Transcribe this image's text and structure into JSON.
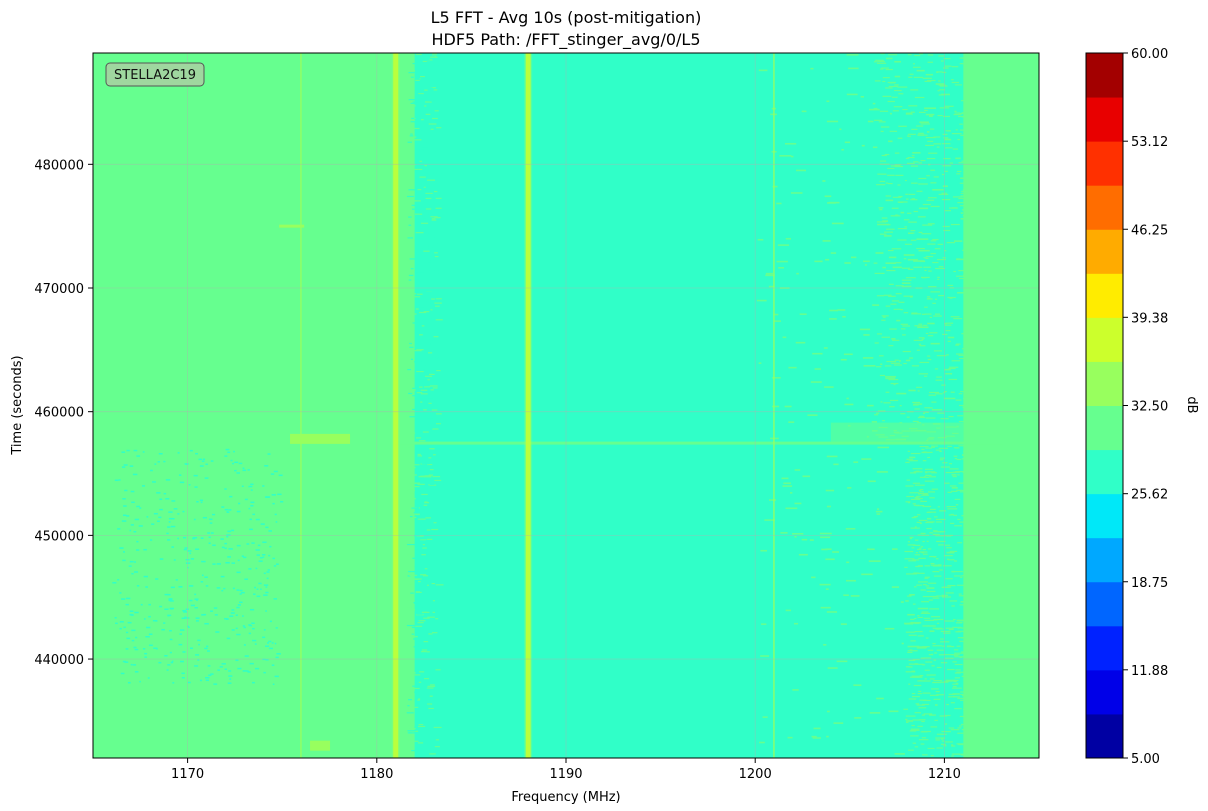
{
  "chart_data": {
    "type": "heatmap",
    "title": "L5 FFT - Avg 10s (post-mitigation)",
    "subtitle": "HDF5 Path: /FFT_stinger_avg/0/L5",
    "xlabel": "Frequency (MHz)",
    "ylabel": "Time (seconds)",
    "xlim": [
      1165,
      1215
    ],
    "ylim": [
      432000,
      489000
    ],
    "x_ticks": [
      1170,
      1180,
      1190,
      1200,
      1210
    ],
    "y_ticks": [
      440000,
      450000,
      460000,
      470000,
      480000
    ],
    "grid": true,
    "annotation": "STELLA2C19",
    "colorbar": {
      "label": "dB",
      "min": 5.0,
      "max": 60.0,
      "levels": 16,
      "ticks": [
        "5.00",
        "11.88",
        "18.75",
        "25.62",
        "32.50",
        "39.38",
        "46.25",
        "53.12",
        "60.00"
      ],
      "colors": [
        "#0000a3",
        "#0000e8",
        "#0022ff",
        "#0066ff",
        "#00a8ff",
        "#00e8f8",
        "#30ffc8",
        "#66ff8f",
        "#98ff5e",
        "#ccff2c",
        "#ffec00",
        "#ffab00",
        "#ff6d00",
        "#ff3000",
        "#e80000",
        "#a30000"
      ]
    },
    "dominant_values_db": {
      "background": 31.0,
      "main_band": 28.0,
      "spur_lines": 37.0
    },
    "main_band_mhz": [
      1182,
      1211
    ],
    "spur_lines_mhz": [
      1181,
      1188
    ],
    "faint_lines_mhz": [
      1176,
      1201
    ],
    "transition_time_s": 457500
  }
}
